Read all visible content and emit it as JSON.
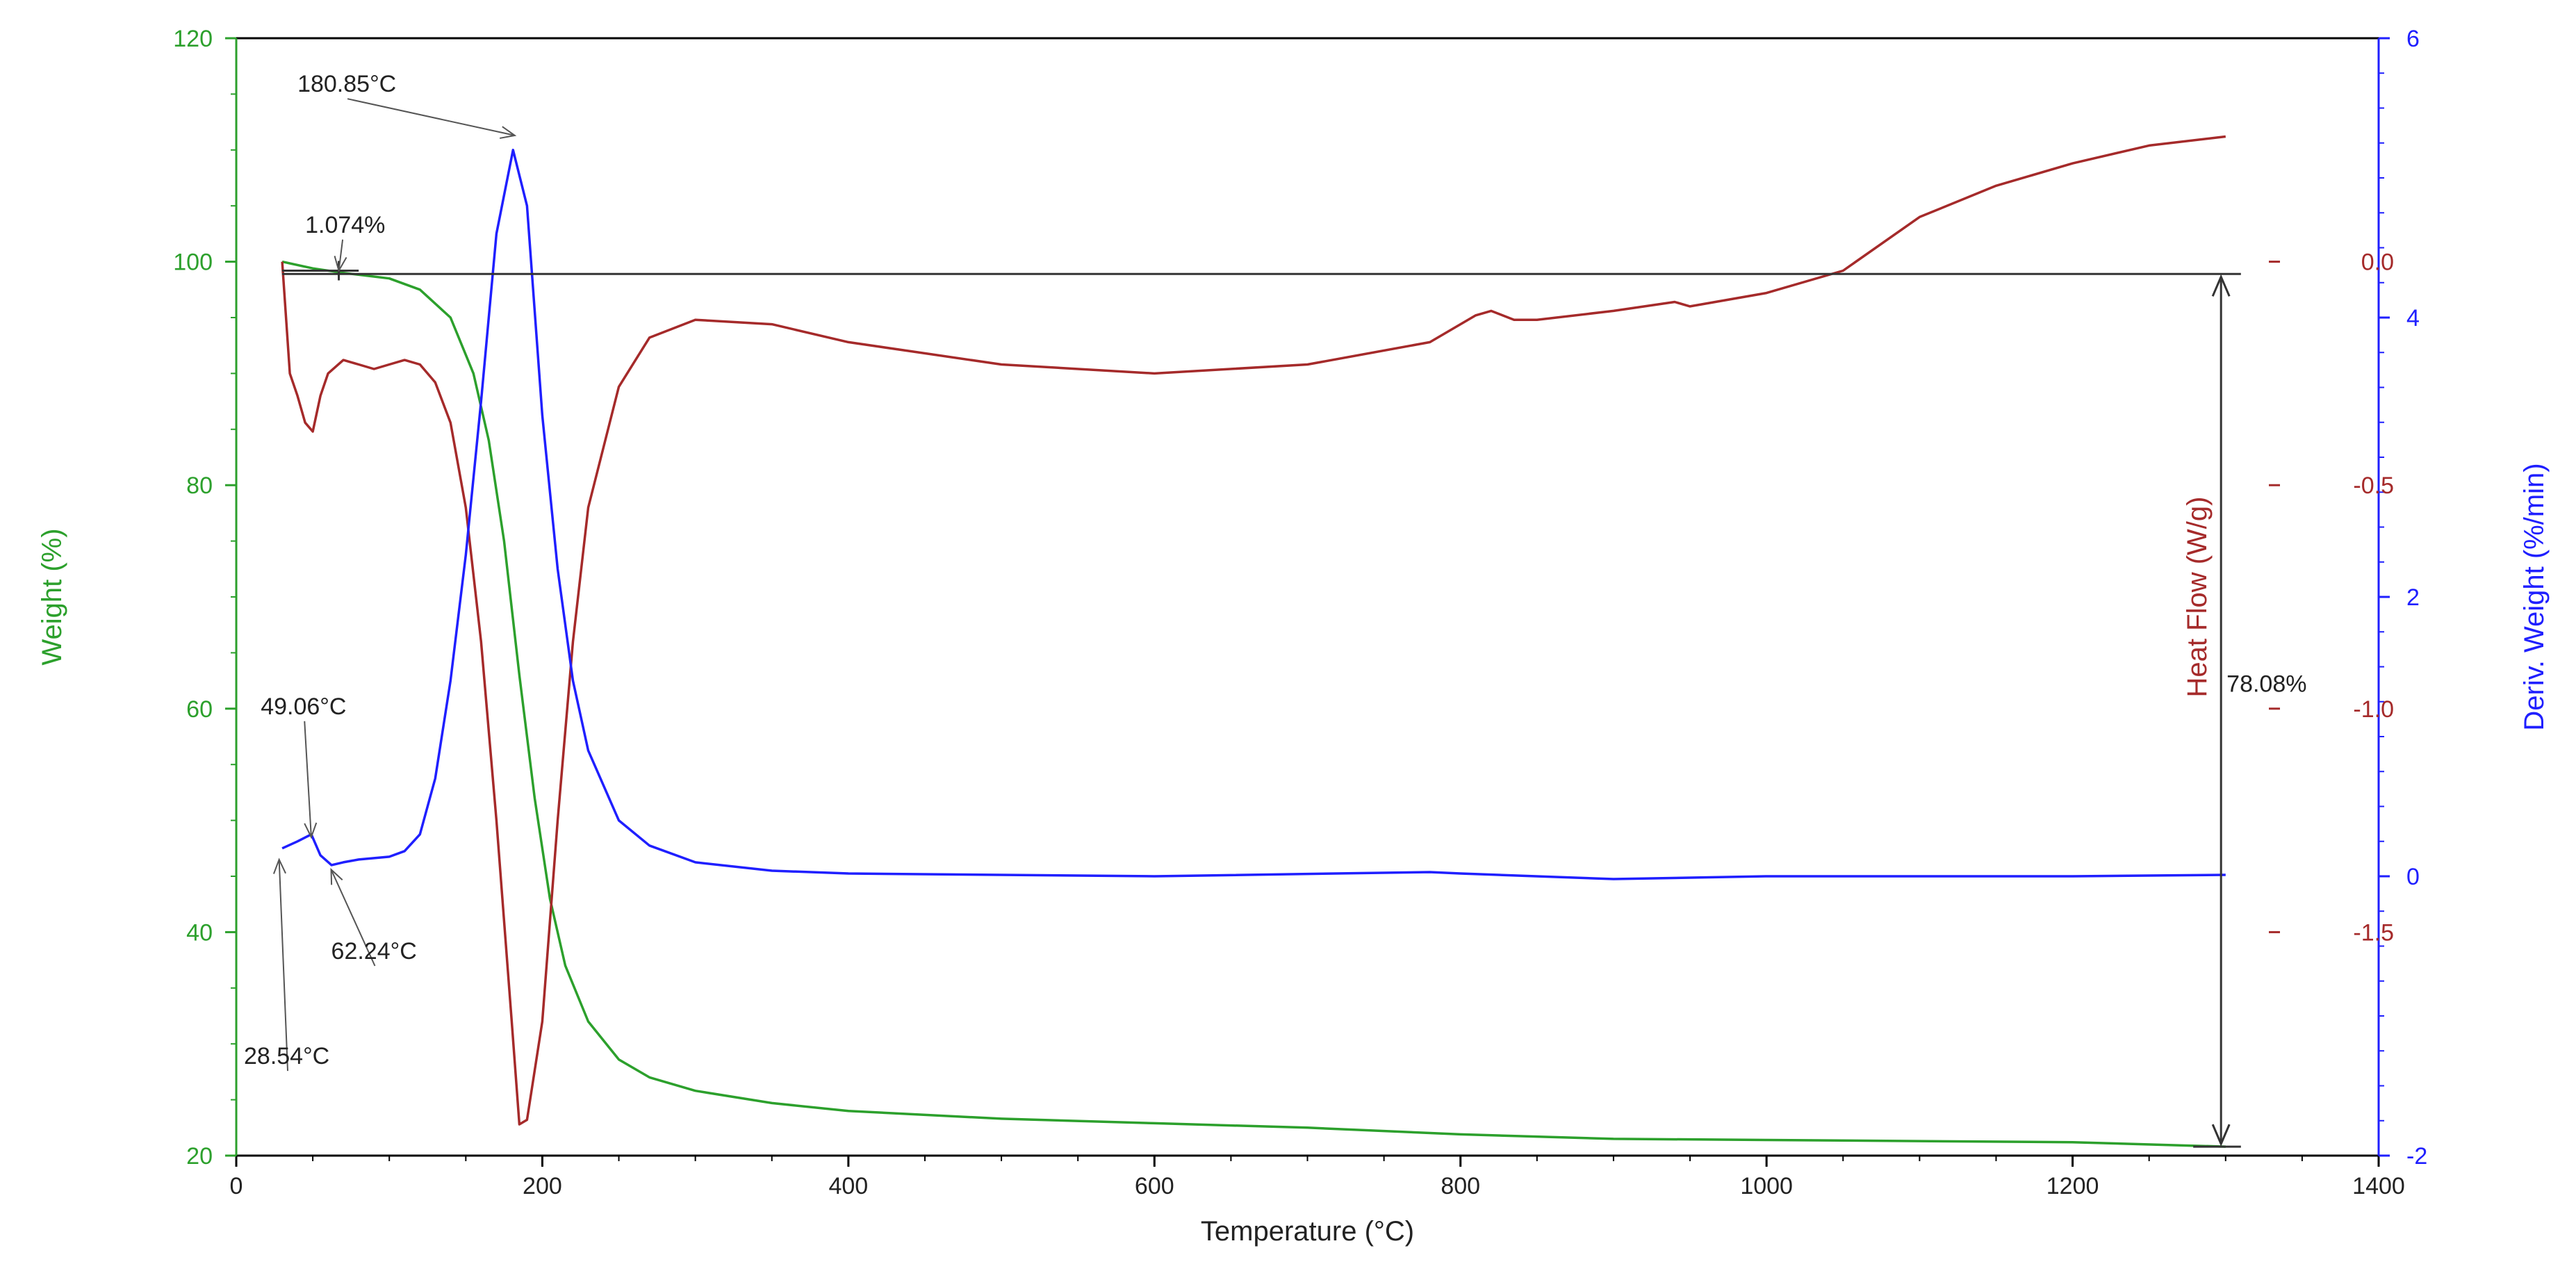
{
  "chart_data": {
    "type": "line",
    "x_axis": {
      "label": "Temperature (°C)",
      "range": [
        0,
        1400
      ],
      "ticks": [
        0,
        200,
        400,
        600,
        800,
        1000,
        1200,
        1400
      ],
      "color": "#000000"
    },
    "y_axes": [
      {
        "id": "weight",
        "label": "Weight (%)",
        "side": "left",
        "range": [
          20,
          120
        ],
        "ticks": [
          20,
          40,
          60,
          80,
          100,
          120
        ],
        "color": "#2ca02c"
      },
      {
        "id": "heatflow",
        "label": "Heat Flow (W/g)",
        "side": "right-inner",
        "range": [
          -2,
          0.5
        ],
        "ticks": [
          0.0,
          -0.5,
          -1.0,
          -1.5
        ],
        "tick_labels": [
          "0.0",
          "-0.5",
          "-1.0",
          "-1.5"
        ],
        "color": "#a52a2a"
      },
      {
        "id": "deriv",
        "label": "Deriv. Weight (%/min)",
        "side": "right",
        "range": [
          -2,
          6
        ],
        "ticks": [
          -2,
          0,
          2,
          4,
          6
        ],
        "color": "#1f1fff"
      }
    ],
    "series": [
      {
        "axis": "weight",
        "color": "#2ca02c",
        "points": [
          [
            30,
            100
          ],
          [
            50,
            99.4
          ],
          [
            70,
            99
          ],
          [
            100,
            98.5
          ],
          [
            120,
            97.5
          ],
          [
            140,
            95
          ],
          [
            155,
            90
          ],
          [
            165,
            84
          ],
          [
            175,
            75
          ],
          [
            185,
            63
          ],
          [
            195,
            52
          ],
          [
            205,
            43
          ],
          [
            215,
            37
          ],
          [
            230,
            32
          ],
          [
            250,
            28.6
          ],
          [
            270,
            27
          ],
          [
            300,
            25.8
          ],
          [
            350,
            24.7
          ],
          [
            400,
            24
          ],
          [
            500,
            23.3
          ],
          [
            600,
            22.9
          ],
          [
            700,
            22.5
          ],
          [
            800,
            21.9
          ],
          [
            900,
            21.5
          ],
          [
            1000,
            21.4
          ],
          [
            1100,
            21.3
          ],
          [
            1200,
            21.2
          ],
          [
            1300,
            20.8
          ]
        ]
      },
      {
        "axis": "heatflow",
        "color": "#a52a2a",
        "points": [
          [
            30,
            0
          ],
          [
            32,
            -0.1
          ],
          [
            35,
            -0.25
          ],
          [
            40,
            -0.3
          ],
          [
            45,
            -0.36
          ],
          [
            50,
            -0.38
          ],
          [
            55,
            -0.3
          ],
          [
            60,
            -0.25
          ],
          [
            70,
            -0.22
          ],
          [
            80,
            -0.23
          ],
          [
            90,
            -0.24
          ],
          [
            100,
            -0.23
          ],
          [
            110,
            -0.22
          ],
          [
            120,
            -0.23
          ],
          [
            130,
            -0.27
          ],
          [
            140,
            -0.36
          ],
          [
            150,
            -0.55
          ],
          [
            160,
            -0.85
          ],
          [
            170,
            -1.25
          ],
          [
            180,
            -1.7
          ],
          [
            185,
            -1.93
          ],
          [
            190,
            -1.92
          ],
          [
            200,
            -1.7
          ],
          [
            210,
            -1.25
          ],
          [
            220,
            -0.85
          ],
          [
            230,
            -0.55
          ],
          [
            250,
            -0.28
          ],
          [
            270,
            -0.17
          ],
          [
            300,
            -0.13
          ],
          [
            350,
            -0.14
          ],
          [
            400,
            -0.18
          ],
          [
            500,
            -0.23
          ],
          [
            600,
            -0.25
          ],
          [
            700,
            -0.23
          ],
          [
            780,
            -0.18
          ],
          [
            810,
            -0.12
          ],
          [
            820,
            -0.11
          ],
          [
            835,
            -0.13
          ],
          [
            850,
            -0.13
          ],
          [
            900,
            -0.11
          ],
          [
            940,
            -0.09
          ],
          [
            950,
            -0.1
          ],
          [
            1000,
            -0.07
          ],
          [
            1050,
            -0.02
          ],
          [
            1100,
            0.1
          ],
          [
            1150,
            0.17
          ],
          [
            1200,
            0.22
          ],
          [
            1250,
            0.26
          ],
          [
            1300,
            0.28
          ]
        ]
      },
      {
        "axis": "deriv",
        "color": "#1f1fff",
        "points": [
          [
            30,
            0.2
          ],
          [
            40,
            0.25
          ],
          [
            49.06,
            0.3
          ],
          [
            55,
            0.15
          ],
          [
            62.24,
            0.08
          ],
          [
            70,
            0.1
          ],
          [
            80,
            0.12
          ],
          [
            90,
            0.13
          ],
          [
            100,
            0.14
          ],
          [
            110,
            0.18
          ],
          [
            120,
            0.3
          ],
          [
            130,
            0.7
          ],
          [
            140,
            1.4
          ],
          [
            150,
            2.3
          ],
          [
            160,
            3.4
          ],
          [
            170,
            4.6
          ],
          [
            180.85,
            5.2
          ],
          [
            190,
            4.8
          ],
          [
            200,
            3.3
          ],
          [
            210,
            2.2
          ],
          [
            220,
            1.4
          ],
          [
            230,
            0.9
          ],
          [
            250,
            0.4
          ],
          [
            270,
            0.22
          ],
          [
            300,
            0.1
          ],
          [
            350,
            0.04
          ],
          [
            400,
            0.02
          ],
          [
            600,
            0
          ],
          [
            780,
            0.03
          ],
          [
            800,
            0.02
          ],
          [
            900,
            -0.02
          ],
          [
            1000,
            0
          ],
          [
            1100,
            0
          ],
          [
            1200,
            0
          ],
          [
            1300,
            0.01
          ]
        ]
      }
    ],
    "step_marker": {
      "label": "78.08%",
      "x": 1297,
      "weight_top": 98.9,
      "weight_bottom": 20.8
    },
    "annotations": [
      {
        "text": "180.85°C",
        "label_x": 40,
        "label_y": 115.2,
        "target_x": 182,
        "target_y": 111.3,
        "axis": "weight"
      },
      {
        "text": "1.074%",
        "label_x": 45,
        "label_y": 102.6,
        "target_x": 67,
        "target_y": 99.2,
        "axis": "weight"
      },
      {
        "text": "49.06°C",
        "label_x": 16,
        "label_y": 59.5,
        "target_x": 49,
        "target_y": 48.5,
        "axis": "weight"
      },
      {
        "text": "62.24°C",
        "label_x": 62,
        "label_y": 37.6,
        "target_x": 62,
        "target_y": 45.6,
        "axis": "weight"
      },
      {
        "text": "28.54°C",
        "label_x": 5,
        "label_y": 28.2,
        "target_x": 28,
        "target_y": 46.5,
        "axis": "weight"
      }
    ]
  }
}
